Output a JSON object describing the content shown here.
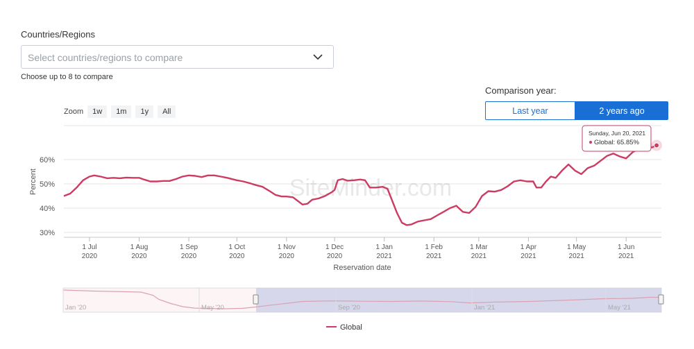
{
  "filter": {
    "label": "Countries/Regions",
    "placeholder": "Select countries/regions to compare",
    "hint": "Choose up to 8 to compare"
  },
  "comparison": {
    "label": "Comparison year:",
    "options": [
      "Last year",
      "2 years ago"
    ],
    "selected": "2 years ago"
  },
  "zoom": {
    "label": "Zoom",
    "options": [
      "1w",
      "1m",
      "1y",
      "All"
    ]
  },
  "tooltip": {
    "date": "Sunday, Jun 20, 2021",
    "text": "Global: 65.85%"
  },
  "watermark": "SiteMinder.com",
  "colors": {
    "series": "#cc3b62",
    "accent": "#1a6fd6",
    "navigator_window": "#c9cde8"
  },
  "chart_data": {
    "type": "line",
    "xlabel": "Reservation date",
    "ylabel": "Percent",
    "yticks": [
      "30%",
      "40%",
      "50%",
      "60%"
    ],
    "ylim": [
      28,
      74
    ],
    "xlim": [
      "2020-06-15",
      "2021-06-23"
    ],
    "grid": true,
    "legend": "bottom",
    "xticks": [
      {
        "date": "2020-07-01",
        "l1": "1 Jul",
        "l2": "2020"
      },
      {
        "date": "2020-08-01",
        "l1": "1 Aug",
        "l2": "2020"
      },
      {
        "date": "2020-09-01",
        "l1": "1 Sep",
        "l2": "2020"
      },
      {
        "date": "2020-10-01",
        "l1": "1 Oct",
        "l2": "2020"
      },
      {
        "date": "2020-11-01",
        "l1": "1 Nov",
        "l2": "2020"
      },
      {
        "date": "2020-12-01",
        "l1": "1 Dec",
        "l2": "2020"
      },
      {
        "date": "2021-01-01",
        "l1": "1 Jan",
        "l2": "2021"
      },
      {
        "date": "2021-02-01",
        "l1": "1 Feb",
        "l2": "2021"
      },
      {
        "date": "2021-03-01",
        "l1": "1 Mar",
        "l2": "2021"
      },
      {
        "date": "2021-04-01",
        "l1": "1 Apr",
        "l2": "2021"
      },
      {
        "date": "2021-05-01",
        "l1": "1 May",
        "l2": "2021"
      },
      {
        "date": "2021-06-01",
        "l1": "1 Jun",
        "l2": "2021"
      }
    ],
    "series": [
      {
        "name": "Global",
        "points": [
          [
            "2020-06-15",
            45
          ],
          [
            "2020-06-19",
            46
          ],
          [
            "2020-06-23",
            48.5
          ],
          [
            "2020-06-27",
            51.5
          ],
          [
            "2020-07-01",
            53
          ],
          [
            "2020-07-04",
            53.5
          ],
          [
            "2020-07-08",
            53
          ],
          [
            "2020-07-12",
            52.3
          ],
          [
            "2020-07-16",
            52.5
          ],
          [
            "2020-07-20",
            52.3
          ],
          [
            "2020-07-24",
            52.6
          ],
          [
            "2020-07-28",
            52.5
          ],
          [
            "2020-08-01",
            52.5
          ],
          [
            "2020-08-04",
            51.8
          ],
          [
            "2020-08-08",
            51
          ],
          [
            "2020-08-12",
            51
          ],
          [
            "2020-08-16",
            51.2
          ],
          [
            "2020-08-20",
            51.2
          ],
          [
            "2020-08-24",
            52
          ],
          [
            "2020-08-28",
            53
          ],
          [
            "2020-09-01",
            53.5
          ],
          [
            "2020-09-05",
            53.3
          ],
          [
            "2020-09-09",
            52.8
          ],
          [
            "2020-09-13",
            53.5
          ],
          [
            "2020-09-17",
            53.5
          ],
          [
            "2020-09-21",
            53
          ],
          [
            "2020-09-25",
            52.5
          ],
          [
            "2020-09-29",
            51.8
          ],
          [
            "2020-10-01",
            51.5
          ],
          [
            "2020-10-05",
            51
          ],
          [
            "2020-10-09",
            50.3
          ],
          [
            "2020-10-13",
            49.5
          ],
          [
            "2020-10-17",
            48.8
          ],
          [
            "2020-10-21",
            47.2
          ],
          [
            "2020-10-25",
            45.5
          ],
          [
            "2020-10-29",
            44.8
          ],
          [
            "2020-11-01",
            44.8
          ],
          [
            "2020-11-05",
            44.5
          ],
          [
            "2020-11-08",
            43
          ],
          [
            "2020-11-11",
            41.5
          ],
          [
            "2020-11-14",
            41.8
          ],
          [
            "2020-11-17",
            43.5
          ],
          [
            "2020-11-21",
            44
          ],
          [
            "2020-11-25",
            45
          ],
          [
            "2020-11-29",
            46.5
          ],
          [
            "2020-12-01",
            47.5
          ],
          [
            "2020-12-03",
            51.5
          ],
          [
            "2020-12-06",
            52
          ],
          [
            "2020-12-09",
            51.3
          ],
          [
            "2020-12-13",
            51.5
          ],
          [
            "2020-12-17",
            51.8
          ],
          [
            "2020-12-20",
            51.5
          ],
          [
            "2020-12-23",
            48.5
          ],
          [
            "2020-12-27",
            48.5
          ],
          [
            "2020-12-31",
            48.8
          ],
          [
            "2021-01-03",
            48
          ],
          [
            "2021-01-06",
            43
          ],
          [
            "2021-01-09",
            38
          ],
          [
            "2021-01-12",
            34
          ],
          [
            "2021-01-15",
            33
          ],
          [
            "2021-01-18",
            33.3
          ],
          [
            "2021-01-22",
            34.5
          ],
          [
            "2021-01-26",
            35
          ],
          [
            "2021-01-30",
            35.5
          ],
          [
            "2021-02-03",
            37
          ],
          [
            "2021-02-07",
            38.5
          ],
          [
            "2021-02-11",
            40
          ],
          [
            "2021-02-15",
            41
          ],
          [
            "2021-02-19",
            38.5
          ],
          [
            "2021-02-23",
            38
          ],
          [
            "2021-02-27",
            40.5
          ],
          [
            "2021-03-03",
            45
          ],
          [
            "2021-03-07",
            47
          ],
          [
            "2021-03-11",
            46.8
          ],
          [
            "2021-03-15",
            47.5
          ],
          [
            "2021-03-19",
            49
          ],
          [
            "2021-03-23",
            51
          ],
          [
            "2021-03-27",
            51.5
          ],
          [
            "2021-03-31",
            51
          ],
          [
            "2021-04-04",
            51
          ],
          [
            "2021-04-06",
            48.5
          ],
          [
            "2021-04-09",
            48.5
          ],
          [
            "2021-04-12",
            51
          ],
          [
            "2021-04-15",
            53
          ],
          [
            "2021-04-18",
            52.5
          ],
          [
            "2021-04-22",
            55.5
          ],
          [
            "2021-04-26",
            58
          ],
          [
            "2021-04-30",
            55.5
          ],
          [
            "2021-05-04",
            54
          ],
          [
            "2021-05-08",
            56.5
          ],
          [
            "2021-05-12",
            57.5
          ],
          [
            "2021-05-16",
            59.5
          ],
          [
            "2021-05-20",
            61.5
          ],
          [
            "2021-05-24",
            62.5
          ],
          [
            "2021-05-28",
            61.3
          ],
          [
            "2021-06-01",
            60.5
          ],
          [
            "2021-06-05",
            63
          ],
          [
            "2021-06-09",
            64.5
          ],
          [
            "2021-06-13",
            65.5
          ],
          [
            "2021-06-17",
            65
          ],
          [
            "2021-06-20",
            65.85
          ]
        ]
      }
    ],
    "navigator": {
      "labels": [
        "Jan '20",
        "May '20",
        "Sep '20",
        "Jan '21",
        "May '21"
      ],
      "selected_range": [
        "2020-06-15",
        "2021-06-20"
      ]
    }
  }
}
